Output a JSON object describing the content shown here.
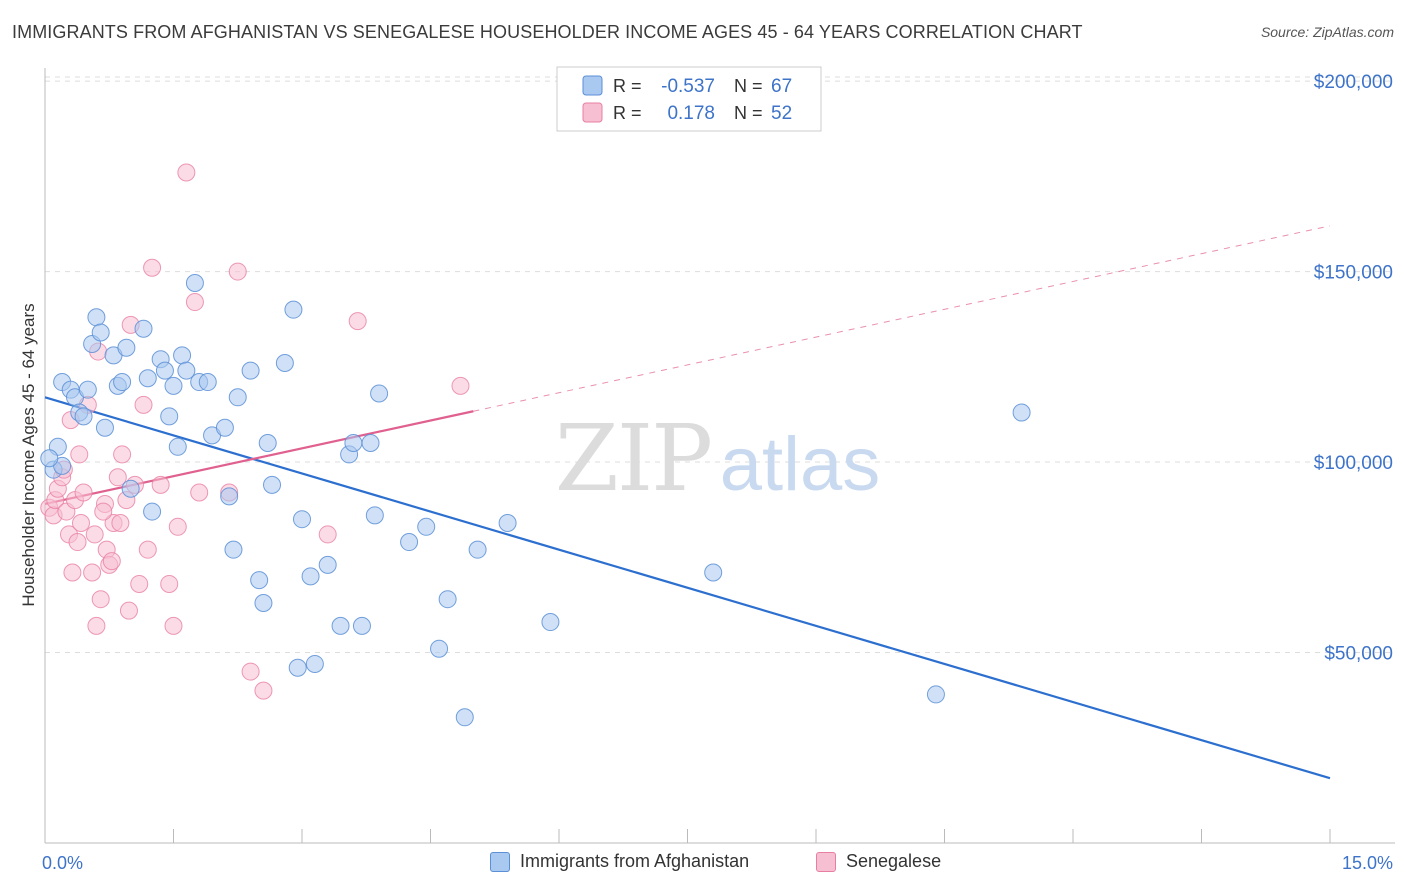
{
  "header": {
    "title": "IMMIGRANTS FROM AFGHANISTAN VS SENEGALESE HOUSEHOLDER INCOME AGES 45 - 64 YEARS CORRELATION CHART",
    "source": "Source: ZipAtlas.com"
  },
  "watermark": {
    "zip": "ZIP",
    "atlas": "atlas"
  },
  "legend_box": {
    "r_label": "R =",
    "n_label": "N =",
    "rows": [
      {
        "r": "-0.537",
        "n": "67"
      },
      {
        "r": "0.178",
        "n": "52"
      }
    ]
  },
  "colors": {
    "afghanistan_fill": "#a9c9f0",
    "afghanistan_stroke": "#5b8fd6",
    "afghanistan_line": "#2c6fcf",
    "senegalese_fill": "#f7bfd2",
    "senegalese_stroke": "#e87fa3",
    "senegalese_line": "#e0608f",
    "axis_text": "#3d73c9",
    "grid": "#dddddd"
  },
  "chart_data": {
    "type": "scatter",
    "xlabel": "",
    "ylabel": "Householder Income Ages 45 - 64 years",
    "xlim": [
      0,
      15
    ],
    "ylim": [
      0,
      210000
    ],
    "x_tick_labels": [
      {
        "value": 0,
        "label": "0.0%"
      },
      {
        "value": 15,
        "label": "15.0%"
      }
    ],
    "y_tick_labels": [
      {
        "value": 50000,
        "label": "$50,000"
      },
      {
        "value": 100000,
        "label": "$100,000"
      },
      {
        "value": 150000,
        "label": "$150,000"
      },
      {
        "value": 200000,
        "label": "$200,000"
      }
    ],
    "grid": true,
    "legend_position": "bottom",
    "series": [
      {
        "name": "Immigrants from Afghanistan",
        "r": -0.537,
        "n": 67,
        "trend": {
          "x": [
            0,
            15
          ],
          "y": [
            117000,
            17000
          ],
          "dashed_from": null
        },
        "points": [
          [
            0.1,
            98000
          ],
          [
            0.15,
            104000
          ],
          [
            0.2,
            99000
          ],
          [
            0.2,
            121000
          ],
          [
            0.3,
            119000
          ],
          [
            0.35,
            117000
          ],
          [
            0.4,
            113000
          ],
          [
            0.45,
            112000
          ],
          [
            0.5,
            119000
          ],
          [
            0.55,
            131000
          ],
          [
            0.6,
            138000
          ],
          [
            0.65,
            134000
          ],
          [
            0.7,
            109000
          ],
          [
            0.8,
            128000
          ],
          [
            0.85,
            120000
          ],
          [
            0.9,
            121000
          ],
          [
            0.95,
            130000
          ],
          [
            1.0,
            93000
          ],
          [
            1.15,
            135000
          ],
          [
            1.2,
            122000
          ],
          [
            1.25,
            87000
          ],
          [
            1.35,
            127000
          ],
          [
            1.4,
            124000
          ],
          [
            1.45,
            112000
          ],
          [
            1.5,
            120000
          ],
          [
            1.55,
            104000
          ],
          [
            1.6,
            128000
          ],
          [
            1.65,
            124000
          ],
          [
            1.75,
            147000
          ],
          [
            1.8,
            121000
          ],
          [
            1.9,
            121000
          ],
          [
            1.95,
            107000
          ],
          [
            2.1,
            109000
          ],
          [
            2.15,
            91000
          ],
          [
            2.2,
            77000
          ],
          [
            2.25,
            117000
          ],
          [
            2.4,
            124000
          ],
          [
            2.5,
            69000
          ],
          [
            2.55,
            63000
          ],
          [
            2.6,
            105000
          ],
          [
            2.65,
            94000
          ],
          [
            2.8,
            126000
          ],
          [
            2.9,
            140000
          ],
          [
            2.95,
            46000
          ],
          [
            3.0,
            85000
          ],
          [
            3.1,
            70000
          ],
          [
            3.15,
            47000
          ],
          [
            3.3,
            73000
          ],
          [
            3.45,
            57000
          ],
          [
            3.55,
            102000
          ],
          [
            3.6,
            105000
          ],
          [
            3.7,
            57000
          ],
          [
            3.8,
            105000
          ],
          [
            3.85,
            86000
          ],
          [
            3.9,
            118000
          ],
          [
            4.25,
            79000
          ],
          [
            4.45,
            83000
          ],
          [
            4.6,
            51000
          ],
          [
            4.7,
            64000
          ],
          [
            4.9,
            33000
          ],
          [
            5.05,
            77000
          ],
          [
            5.4,
            84000
          ],
          [
            5.9,
            58000
          ],
          [
            7.8,
            71000
          ],
          [
            10.4,
            39000
          ],
          [
            11.4,
            113000
          ],
          [
            0.05,
            101000
          ]
        ]
      },
      {
        "name": "Senegalese",
        "r": 0.178,
        "n": 52,
        "trend": {
          "x": [
            0,
            15
          ],
          "y": [
            89000,
            162000
          ],
          "dashed_from": 5.0
        },
        "points": [
          [
            0.05,
            88000
          ],
          [
            0.1,
            86000
          ],
          [
            0.12,
            90000
          ],
          [
            0.15,
            93000
          ],
          [
            0.2,
            96000
          ],
          [
            0.25,
            87000
          ],
          [
            0.28,
            81000
          ],
          [
            0.3,
            111000
          ],
          [
            0.32,
            71000
          ],
          [
            0.35,
            90000
          ],
          [
            0.38,
            79000
          ],
          [
            0.42,
            84000
          ],
          [
            0.45,
            92000
          ],
          [
            0.5,
            115000
          ],
          [
            0.55,
            71000
          ],
          [
            0.58,
            81000
          ],
          [
            0.6,
            57000
          ],
          [
            0.62,
            129000
          ],
          [
            0.65,
            64000
          ],
          [
            0.7,
            89000
          ],
          [
            0.72,
            77000
          ],
          [
            0.75,
            73000
          ],
          [
            0.78,
            74000
          ],
          [
            0.8,
            84000
          ],
          [
            0.85,
            96000
          ],
          [
            0.88,
            84000
          ],
          [
            0.9,
            102000
          ],
          [
            0.95,
            90000
          ],
          [
            0.98,
            61000
          ],
          [
            1.0,
            136000
          ],
          [
            1.05,
            94000
          ],
          [
            1.1,
            68000
          ],
          [
            1.15,
            115000
          ],
          [
            1.2,
            77000
          ],
          [
            1.25,
            151000
          ],
          [
            1.35,
            94000
          ],
          [
            1.45,
            68000
          ],
          [
            1.5,
            57000
          ],
          [
            1.55,
            83000
          ],
          [
            1.65,
            176000
          ],
          [
            1.75,
            142000
          ],
          [
            1.8,
            92000
          ],
          [
            2.15,
            92000
          ],
          [
            2.25,
            150000
          ],
          [
            2.4,
            45000
          ],
          [
            2.55,
            40000
          ],
          [
            3.3,
            81000
          ],
          [
            3.65,
            137000
          ],
          [
            4.85,
            120000
          ],
          [
            0.4,
            102000
          ],
          [
            0.22,
            98000
          ],
          [
            0.68,
            87000
          ]
        ]
      }
    ]
  },
  "bottom_legend": [
    {
      "label": "Immigrants from Afghanistan"
    },
    {
      "label": "Senegalese"
    }
  ]
}
